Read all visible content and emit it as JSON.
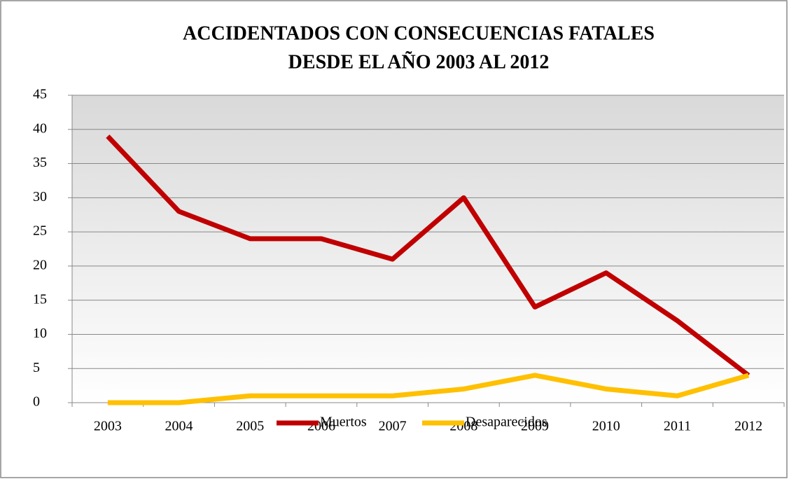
{
  "chart_data": {
    "type": "line",
    "title": [
      "ACCIDENTADOS CON CONSECUENCIAS FATALES",
      "DESDE EL AÑO 2003 AL 2012"
    ],
    "categories": [
      "2003",
      "2004",
      "2005",
      "2006",
      "2007",
      "2008",
      "2009",
      "2010",
      "2011",
      "2012"
    ],
    "series": [
      {
        "name": "Muertos",
        "color": "#c00000",
        "values": [
          39,
          28,
          24,
          24,
          21,
          30,
          14,
          19,
          12,
          4
        ]
      },
      {
        "name": "Desaparecidos",
        "color": "#ffc000",
        "values": [
          0,
          0,
          1,
          1,
          1,
          2,
          4,
          2,
          1,
          4
        ]
      }
    ],
    "ylim": [
      0,
      45
    ],
    "yticks": [
      0,
      5,
      10,
      15,
      20,
      25,
      30,
      35,
      40,
      45
    ],
    "grid": true,
    "legend": "bottom"
  }
}
